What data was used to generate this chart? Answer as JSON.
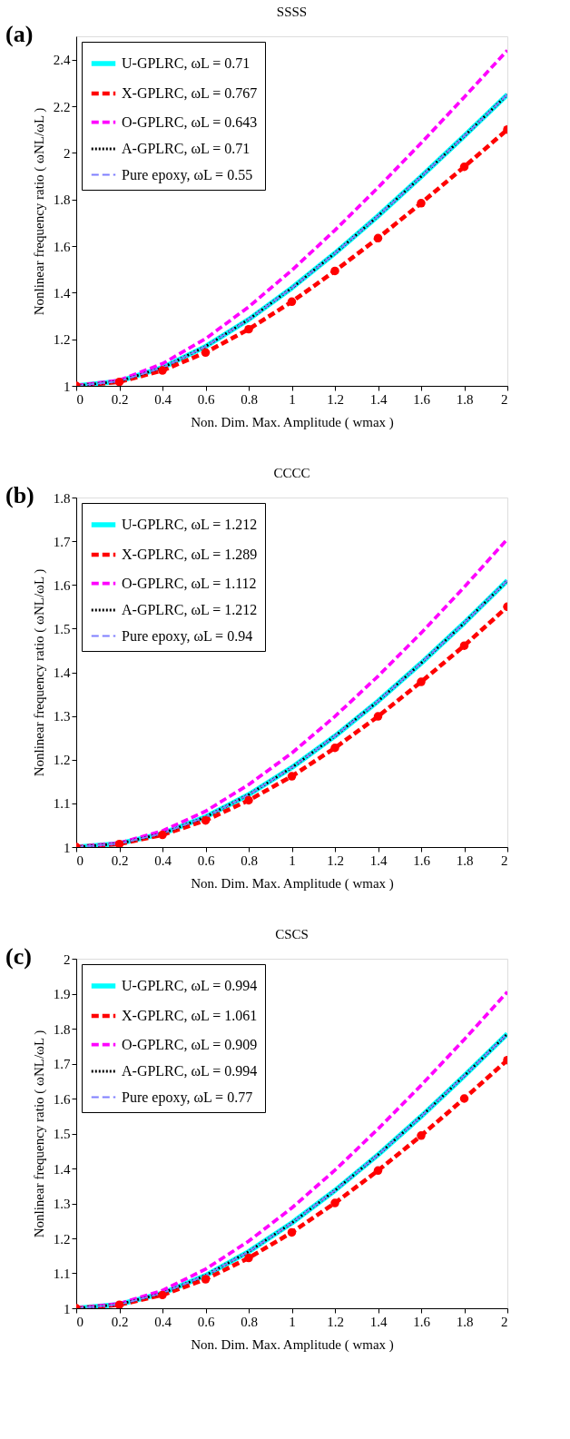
{
  "chart_data": [
    {
      "type": "line",
      "title": "SSSS",
      "xlabel": "Non. Dim. Max. Amplitude ( wmax )",
      "ylabel": "Nonlinear frequency ratio ( ωNL/ωL )",
      "annotations": [
        "(a)"
      ],
      "x": [
        0,
        0.2,
        0.4,
        0.6,
        0.8,
        1,
        1.2,
        1.4,
        1.6,
        1.8,
        2
      ],
      "xlim": [
        0,
        2
      ],
      "xticks": [
        0,
        0.2,
        0.4,
        0.6,
        0.8,
        1,
        1.2,
        1.4,
        1.6,
        1.8,
        2
      ],
      "ylim": [
        1,
        2.5
      ],
      "yticks": [
        1,
        1.2,
        1.4,
        1.6,
        1.8,
        2,
        2.2,
        2.4
      ],
      "grid": false,
      "legend": "top left",
      "series": [
        {
          "name": "U-GPLRC, ωL = 0.71",
          "color": "#00ffff",
          "line_style": "solid",
          "marker": "none",
          "values": [
            1,
            1.02,
            1.078,
            1.169,
            1.285,
            1.42,
            1.569,
            1.729,
            1.898,
            2.072,
            2.25
          ]
        },
        {
          "name": "X-GPLRC, ωL = 0.767",
          "color": "#ff0000",
          "line_style": "dashed",
          "marker": "circle",
          "values": [
            1,
            1.017,
            1.066,
            1.143,
            1.243,
            1.361,
            1.493,
            1.634,
            1.784,
            1.94,
            2.1
          ]
        },
        {
          "name": "O-GPLRC, ωL = 0.643",
          "color": "#ff00ff",
          "line_style": "dashed",
          "marker": "none",
          "values": [
            1,
            1.024,
            1.095,
            1.202,
            1.339,
            1.496,
            1.668,
            1.851,
            2.042,
            2.239,
            2.44
          ]
        },
        {
          "name": "A-GPLRC, ωL = 0.71",
          "color": "#000000",
          "line_style": "dotted",
          "marker": "none",
          "values": [
            1,
            1.02,
            1.078,
            1.169,
            1.285,
            1.42,
            1.569,
            1.729,
            1.898,
            2.072,
            2.25
          ]
        },
        {
          "name": "Pure epoxy, ωL = 0.55",
          "color": "#7f7fff",
          "line_style": "dashed",
          "marker": "none",
          "values": [
            1,
            1.02,
            1.078,
            1.169,
            1.285,
            1.42,
            1.569,
            1.729,
            1.898,
            2.072,
            2.25
          ]
        }
      ]
    },
    {
      "type": "line",
      "title": "CCCC",
      "xlabel": "Non. Dim. Max. Amplitude ( wmax )",
      "ylabel": "Nonlinear frequency ratio ( ωNL/ωL )",
      "annotations": [
        "(b)"
      ],
      "x": [
        0,
        0.2,
        0.4,
        0.6,
        0.8,
        1,
        1.2,
        1.4,
        1.6,
        1.8,
        2
      ],
      "xlim": [
        0,
        2
      ],
      "xticks": [
        0,
        0.2,
        0.4,
        0.6,
        0.8,
        1,
        1.2,
        1.4,
        1.6,
        1.8,
        2
      ],
      "ylim": [
        1,
        1.8
      ],
      "yticks": [
        1,
        1.1,
        1.2,
        1.3,
        1.4,
        1.5,
        1.6,
        1.7,
        1.8
      ],
      "grid": false,
      "legend": "top left",
      "series": [
        {
          "name": "U-GPLRC, ωL = 1.212",
          "color": "#00ffff",
          "line_style": "solid",
          "marker": "none",
          "values": [
            1,
            1.008,
            1.031,
            1.069,
            1.12,
            1.182,
            1.254,
            1.334,
            1.421,
            1.513,
            1.61
          ]
        },
        {
          "name": "X-GPLRC, ωL = 1.289",
          "color": "#ff0000",
          "line_style": "dashed",
          "marker": "circle",
          "values": [
            1,
            1.007,
            1.028,
            1.061,
            1.107,
            1.162,
            1.227,
            1.299,
            1.378,
            1.461,
            1.55
          ]
        },
        {
          "name": "O-GPLRC, ωL = 1.112",
          "color": "#ff00ff",
          "line_style": "dashed",
          "marker": "none",
          "values": [
            1,
            1.009,
            1.037,
            1.082,
            1.143,
            1.215,
            1.299,
            1.391,
            1.49,
            1.595,
            1.705
          ]
        },
        {
          "name": "A-GPLRC, ωL = 1.212",
          "color": "#000000",
          "line_style": "dotted",
          "marker": "none",
          "values": [
            1,
            1.008,
            1.031,
            1.069,
            1.12,
            1.182,
            1.254,
            1.334,
            1.421,
            1.513,
            1.61
          ]
        },
        {
          "name": "Pure epoxy, ωL = 0.94",
          "color": "#7f7fff",
          "line_style": "dashed",
          "marker": "none",
          "values": [
            1,
            1.008,
            1.031,
            1.069,
            1.12,
            1.182,
            1.254,
            1.334,
            1.421,
            1.513,
            1.61
          ]
        }
      ]
    },
    {
      "type": "line",
      "title": "CSCS",
      "xlabel": "Non. Dim. Max. Amplitude ( wmax )",
      "ylabel": "Nonlinear frequency ratio ( ωNL/ωL )",
      "annotations": [
        "(c)"
      ],
      "x": [
        0,
        0.2,
        0.4,
        0.6,
        0.8,
        1,
        1.2,
        1.4,
        1.6,
        1.8,
        2
      ],
      "xlim": [
        0,
        2
      ],
      "xticks": [
        0,
        0.2,
        0.4,
        0.6,
        0.8,
        1,
        1.2,
        1.4,
        1.6,
        1.8,
        2
      ],
      "ylim": [
        1,
        2
      ],
      "yticks": [
        1,
        1.1,
        1.2,
        1.3,
        1.4,
        1.5,
        1.6,
        1.7,
        1.8,
        1.9,
        2
      ],
      "grid": false,
      "legend": "top left",
      "series": [
        {
          "name": "U-GPLRC, ωL = 0.994",
          "color": "#00ffff",
          "line_style": "solid",
          "marker": "none",
          "values": [
            1,
            1.011,
            1.043,
            1.094,
            1.162,
            1.244,
            1.337,
            1.439,
            1.549,
            1.665,
            1.785
          ]
        },
        {
          "name": "X-GPLRC, ωL = 1.061",
          "color": "#ff0000",
          "line_style": "dashed",
          "marker": "circle",
          "values": [
            1,
            1.01,
            1.038,
            1.083,
            1.144,
            1.217,
            1.301,
            1.394,
            1.494,
            1.6,
            1.71
          ]
        },
        {
          "name": "O-GPLRC, ωL = 0.909",
          "color": "#ff00ff",
          "line_style": "dashed",
          "marker": "none",
          "values": [
            1,
            1.013,
            1.051,
            1.112,
            1.192,
            1.287,
            1.395,
            1.513,
            1.638,
            1.769,
            1.905
          ]
        },
        {
          "name": "A-GPLRC, ωL = 0.994",
          "color": "#000000",
          "line_style": "dotted",
          "marker": "none",
          "values": [
            1,
            1.011,
            1.043,
            1.094,
            1.162,
            1.244,
            1.337,
            1.439,
            1.549,
            1.665,
            1.785
          ]
        },
        {
          "name": "Pure epoxy, ωL = 0.77",
          "color": "#7f7fff",
          "line_style": "dashed",
          "marker": "none",
          "values": [
            1,
            1.011,
            1.043,
            1.094,
            1.162,
            1.244,
            1.337,
            1.439,
            1.549,
            1.665,
            1.785
          ]
        }
      ]
    }
  ]
}
